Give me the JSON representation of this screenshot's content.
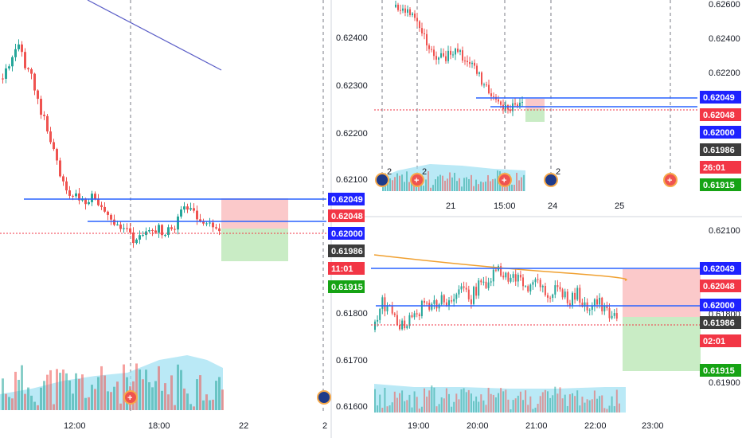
{
  "colors": {
    "up": "#26a69a",
    "down": "#ef5350",
    "level_line": "#2962ff",
    "price_line": "#f23645",
    "tag_blue": "#1e22ff",
    "tag_red": "#f23645",
    "tag_dark": "#3c3c3c",
    "tag_green": "#16a314",
    "volume_area": "#9ce0f2",
    "target_zone": "#c9ecc5",
    "stop_zone": "#fbc9ca",
    "trend_line_purple": "#5b5ec7",
    "moving_average_orange": "#f0a030"
  },
  "panels": [
    {
      "name": "left-chart",
      "price_axis_labels": [
        "0.62400",
        "0.62300",
        "0.62200",
        "0.62100",
        "0.61800",
        "0.61700",
        "0.61600"
      ],
      "price_tags": [
        {
          "text": "0.62049",
          "kind": "blue"
        },
        {
          "text": "0.62048",
          "kind": "red"
        },
        {
          "text": "0.62000",
          "kind": "blue"
        },
        {
          "text": "0.61986",
          "kind": "dark"
        },
        {
          "text": "11:01",
          "kind": "red"
        },
        {
          "text": "0.61915",
          "kind": "green"
        }
      ],
      "time_labels": [
        "12:00",
        "18:00",
        "22",
        "2"
      ],
      "chart_data": {
        "type": "candlestick",
        "levels": [
          0.62049,
          0.62048,
          0.62,
          0.61986,
          0.61915
        ],
        "last_price": 0.61986,
        "event_marker_count": "2"
      }
    },
    {
      "name": "top-right-chart",
      "price_axis_labels": [
        "0.62600",
        "0.62400",
        "0.62200"
      ],
      "price_tags": [
        {
          "text": "0.62049",
          "kind": "blue"
        },
        {
          "text": "0.62048",
          "kind": "red"
        },
        {
          "text": "0.62000",
          "kind": "blue"
        },
        {
          "text": "0.61986",
          "kind": "dark"
        },
        {
          "text": "26:01",
          "kind": "red"
        },
        {
          "text": "0.61915",
          "kind": "green"
        }
      ],
      "time_labels": [
        "21",
        "15:00",
        "24",
        "25"
      ],
      "event_marker_counts": [
        "2",
        "2",
        "2"
      ],
      "chart_data": {
        "type": "candlestick",
        "levels": [
          0.62049,
          0.62048,
          0.62,
          0.61986,
          0.61915
        ],
        "last_price": 0.61986
      }
    },
    {
      "name": "bottom-right-chart",
      "price_axis_labels": [
        "0.62100",
        "0.61800",
        "0.61900"
      ],
      "price_tags": [
        {
          "text": "0.62049",
          "kind": "blue"
        },
        {
          "text": "0.62048",
          "kind": "red"
        },
        {
          "text": "0.62000",
          "kind": "blue"
        },
        {
          "text": "0.61986",
          "kind": "dark"
        },
        {
          "text": "02:01",
          "kind": "red"
        },
        {
          "text": "0.61915",
          "kind": "green"
        }
      ],
      "time_labels": [
        "19:00",
        "20:00",
        "21:00",
        "22:00",
        "23:00"
      ],
      "chart_data": {
        "type": "candlestick",
        "levels": [
          0.62049,
          0.62048,
          0.62,
          0.61986,
          0.61915
        ],
        "last_price": 0.61986
      }
    }
  ]
}
